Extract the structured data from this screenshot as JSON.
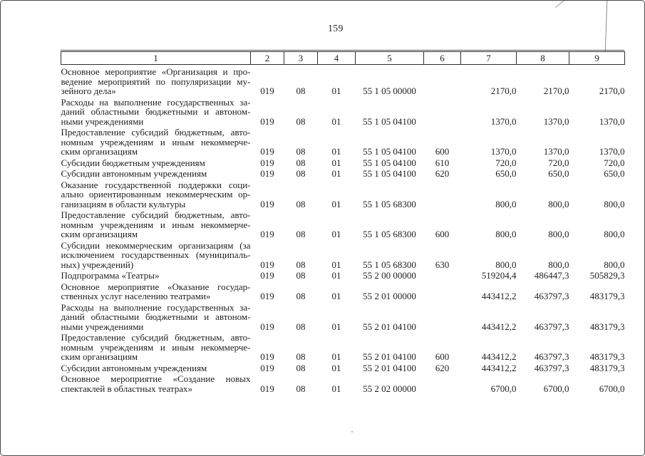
{
  "page_number": "159",
  "colors": {
    "ink": "#1e1e1e",
    "table_line": "#2e2e2e",
    "page_frame": "#4a4a4a"
  },
  "table": {
    "column_headers": [
      "1",
      "2",
      "3",
      "4",
      "5",
      "6",
      "7",
      "8",
      "9"
    ],
    "rows": [
      {
        "lines": [
          "Основное мероприятие «Организация и про-",
          "ведение мероприятий по популяризации му-",
          "зейного дела»"
        ],
        "c2": "019",
        "c3": "08",
        "c4": "01",
        "c5": "55 1 05 00000",
        "c6": "",
        "c7": "2170,0",
        "c8": "2170,0",
        "c9": "2170,0"
      },
      {
        "lines": [
          "Расходы на выполнение государственных за-",
          "даний областными бюджетными и автоном-",
          "ными учреждениями"
        ],
        "c2": "019",
        "c3": "08",
        "c4": "01",
        "c5": "55 1 05 04100",
        "c6": "",
        "c7": "1370,0",
        "c8": "1370,0",
        "c9": "1370,0"
      },
      {
        "lines": [
          "Предоставление субсидий бюджетным, авто-",
          "номным учреждениям и иным некоммерче-",
          "ским организациям"
        ],
        "c2": "019",
        "c3": "08",
        "c4": "01",
        "c5": "55 1 05 04100",
        "c6": "600",
        "c7": "1370,0",
        "c8": "1370,0",
        "c9": "1370,0"
      },
      {
        "lines": [
          "Субсидии бюджетным учреждениям"
        ],
        "c2": "019",
        "c3": "08",
        "c4": "01",
        "c5": "55 1 05 04100",
        "c6": "610",
        "c7": "720,0",
        "c8": "720,0",
        "c9": "720,0"
      },
      {
        "lines": [
          "Субсидии автономным учреждениям"
        ],
        "c2": "019",
        "c3": "08",
        "c4": "01",
        "c5": "55 1 05 04100",
        "c6": "620",
        "c7": "650,0",
        "c8": "650,0",
        "c9": "650,0"
      },
      {
        "lines": [
          "Оказание государственной поддержки соци-",
          "ально ориентированным некоммерческим ор-",
          "ганизациям в области культуры"
        ],
        "c2": "019",
        "c3": "08",
        "c4": "01",
        "c5": "55 1 05 68300",
        "c6": "",
        "c7": "800,0",
        "c8": "800,0",
        "c9": "800,0"
      },
      {
        "lines": [
          "Предоставление субсидий бюджетным, авто-",
          "номным учреждениям и иным некоммерче-",
          "ским организациям"
        ],
        "c2": "019",
        "c3": "08",
        "c4": "01",
        "c5": "55 1 05 68300",
        "c6": "600",
        "c7": "800,0",
        "c8": "800,0",
        "c9": "800,0"
      },
      {
        "lines": [
          "Субсидии некоммерческим организациям (за",
          "исключением государственных (муниципаль-",
          "ных) учреждений)"
        ],
        "c2": "019",
        "c3": "08",
        "c4": "01",
        "c5": "55 1 05 68300",
        "c6": "630",
        "c7": "800,0",
        "c8": "800,0",
        "c9": "800,0"
      },
      {
        "lines": [
          "Подпрограмма «Театры»"
        ],
        "c2": "019",
        "c3": "08",
        "c4": "01",
        "c5": "55 2 00 00000",
        "c6": "",
        "c7": "519204,4",
        "c8": "486447,3",
        "c9": "505829,3"
      },
      {
        "lines": [
          "Основное мероприятие «Оказание государ-",
          "ственных услуг населению театрами»"
        ],
        "c2": "019",
        "c3": "08",
        "c4": "01",
        "c5": "55 2 01 00000",
        "c6": "",
        "c7": "443412,2",
        "c8": "463797,3",
        "c9": "483179,3"
      },
      {
        "lines": [
          "Расходы на выполнение государственных за-",
          "даний областными бюджетными и автоном-",
          "ными учреждениями"
        ],
        "c2": "019",
        "c3": "08",
        "c4": "01",
        "c5": "55 2 01 04100",
        "c6": "",
        "c7": "443412,2",
        "c8": "463797,3",
        "c9": "483179,3"
      },
      {
        "lines": [
          "Предоставление субсидий бюджетным, авто-",
          "номным учреждениям и иным некоммерче-",
          "ским организациям"
        ],
        "c2": "019",
        "c3": "08",
        "c4": "01",
        "c5": "55 2 01 04100",
        "c6": "600",
        "c7": "443412,2",
        "c8": "463797,3",
        "c9": "483179,3"
      },
      {
        "lines": [
          "Субсидии автономным учреждениям"
        ],
        "c2": "019",
        "c3": "08",
        "c4": "01",
        "c5": "55 2 01 04100",
        "c6": "620",
        "c7": "443412,2",
        "c8": "463797,3",
        "c9": "483179,3"
      },
      {
        "lines": [
          "Основное мероприятие «Создание новых",
          "спектаклей в областных театрах»"
        ],
        "c2": "019",
        "c3": "08",
        "c4": "01",
        "c5": "55 2 02 00000",
        "c6": "",
        "c7": "6700,0",
        "c8": "6700,0",
        "c9": "6700,0"
      }
    ]
  }
}
